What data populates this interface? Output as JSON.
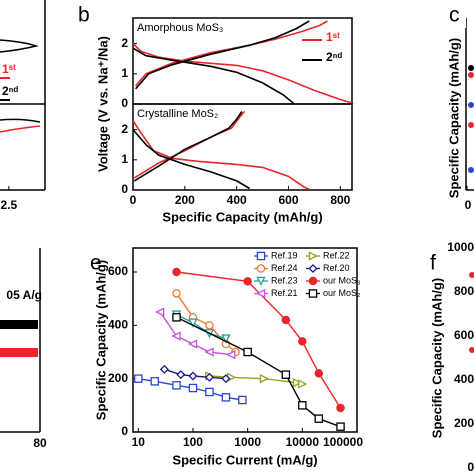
{
  "chart_data": [
    {
      "type": "line",
      "series": [
        {
          "name": "1ˢᵗ",
          "color": "#e8262b"
        },
        {
          "name": "2ⁿᵈ",
          "color": "#000000"
        }
      ],
      "xticks": [
        2.5
      ]
    },
    {
      "type": "line",
      "label": "b",
      "xlabel": "Specific Capacity (mAh/g)",
      "ylabel": "Voltage (V vs. Na⁺/Na)",
      "xlim": [
        0,
        845
      ],
      "xticks": [
        0,
        200,
        400,
        600,
        800
      ],
      "panels": [
        {
          "title": "Amorphous MoS₃",
          "ylim": [
            0,
            2.85
          ],
          "yticks": [
            0,
            1,
            2
          ],
          "series": [
            {
              "name": "1ˢᵗ",
              "color": "#e8262b",
              "x": [
                0,
                30,
                100,
                200,
                300,
                400,
                500,
                600,
                700,
                800,
                850,
                null,
                10,
                50,
                150,
                300,
                450,
                550,
                650,
                720,
                750
              ],
              "y": [
                2.0,
                1.75,
                1.55,
                1.42,
                1.35,
                1.28,
                1.1,
                0.8,
                0.45,
                0.15,
                0.02,
                null,
                0.6,
                1.0,
                1.35,
                1.7,
                1.95,
                2.15,
                2.4,
                2.6,
                2.75
              ]
            },
            {
              "name": "2ⁿᵈ",
              "color": "#000000",
              "x": [
                0,
                50,
                150,
                300,
                400,
                500,
                580,
                620,
                null,
                10,
                60,
                150,
                300,
                450,
                550,
                630,
                680
              ],
              "y": [
                1.85,
                1.6,
                1.45,
                1.25,
                1.05,
                0.7,
                0.3,
                0.02,
                null,
                0.5,
                1.0,
                1.3,
                1.65,
                1.95,
                2.2,
                2.5,
                2.75
              ]
            }
          ]
        },
        {
          "title": "Crystalline MoS₂",
          "ylim": [
            0,
            2.85
          ],
          "yticks": [
            0,
            1,
            2
          ],
          "series": [
            {
              "color": "#e8262b",
              "x": [
                0,
                30,
                80,
                150,
                250,
                400,
                500,
                600,
                660,
                680,
                null,
                5,
                100,
                200,
                300,
                380,
                410,
                430
              ],
              "y": [
                2.3,
                1.9,
                1.3,
                1.05,
                0.95,
                0.85,
                0.75,
                0.45,
                0.1,
                0.02,
                null,
                0.4,
                0.9,
                1.3,
                1.75,
                2.05,
                2.4,
                2.6
              ]
            },
            {
              "color": "#000000",
              "x": [
                0,
                50,
                100,
                200,
                300,
                400,
                450,
                null,
                5,
                100,
                200,
                300,
                370,
                400,
                420
              ],
              "y": [
                2.0,
                1.5,
                1.15,
                0.85,
                0.6,
                0.3,
                0.05,
                null,
                0.3,
                0.8,
                1.35,
                1.75,
                2.05,
                2.35,
                2.6
              ]
            }
          ]
        }
      ]
    },
    {
      "type": "scatter",
      "label": "c",
      "ylabel": "Specific Capacity (mAh/g)",
      "xticks": [
        0
      ]
    },
    {
      "type": "line",
      "annotation": "05 A/g",
      "xticks": [
        80
      ]
    },
    {
      "type": "scatter",
      "label": "e",
      "xlabel": "Specific Current (mA/g)",
      "ylabel": "Specific Capacity (mAh/g)",
      "xscale": "log",
      "xlim": [
        8,
        100000
      ],
      "xticks": [
        10,
        100,
        1000,
        10000,
        100000
      ],
      "ylim": [
        0,
        690
      ],
      "yticks": [
        0,
        200,
        400,
        600
      ],
      "series": [
        {
          "name": "Ref.19",
          "color": "#2a48d0",
          "marker": "square",
          "filled": false,
          "x": [
            10,
            20,
            50,
            100,
            200,
            400,
            800
          ],
          "values": [
            200,
            190,
            175,
            165,
            150,
            130,
            120
          ]
        },
        {
          "name": "Ref.22",
          "color": "#9aa020",
          "marker": "triangle-right",
          "filled": false,
          "x": [
            200,
            500,
            2000,
            8000,
            10000
          ],
          "values": [
            210,
            205,
            200,
            185,
            180
          ]
        },
        {
          "name": "Ref.24",
          "color": "#f07a2a",
          "marker": "circle",
          "filled": false,
          "x": [
            50,
            100,
            200,
            400,
            600
          ],
          "values": [
            520,
            430,
            400,
            330,
            300
          ]
        },
        {
          "name": "Ref.20",
          "color": "#1a1a8a",
          "marker": "diamond",
          "filled": false,
          "x": [
            30,
            60,
            100,
            200,
            400
          ],
          "values": [
            235,
            215,
            210,
            205,
            200
          ]
        },
        {
          "name": "Ref.23",
          "color": "#2aa198",
          "marker": "triangle-down",
          "filled": false,
          "x": [
            50,
            100,
            200,
            400
          ],
          "values": [
            440,
            410,
            370,
            350
          ]
        },
        {
          "name": "our MoS₃",
          "color": "#e8262b",
          "marker": "circle",
          "filled": true,
          "x": [
            50,
            1000,
            5000,
            10000,
            20000,
            50000
          ],
          "values": [
            600,
            565,
            420,
            340,
            220,
            90
          ]
        },
        {
          "name": "Ref.21",
          "color": "#c84fe0",
          "marker": "triangle-left",
          "filled": false,
          "x": [
            25,
            50,
            100,
            200,
            500
          ],
          "values": [
            450,
            360,
            330,
            300,
            290
          ]
        },
        {
          "name": "our MoS₂",
          "color": "#000000",
          "marker": "square",
          "filled": false,
          "x": [
            50,
            1000,
            5000,
            10000,
            20000,
            50000
          ],
          "values": [
            430,
            300,
            215,
            100,
            50,
            20
          ]
        }
      ]
    },
    {
      "type": "scatter",
      "label": "f",
      "ylabel": "Specific Capacity (mAh/g)",
      "ylim": [
        0,
        1000
      ],
      "yticks": [
        0,
        200,
        400,
        600,
        800,
        1000
      ]
    }
  ]
}
